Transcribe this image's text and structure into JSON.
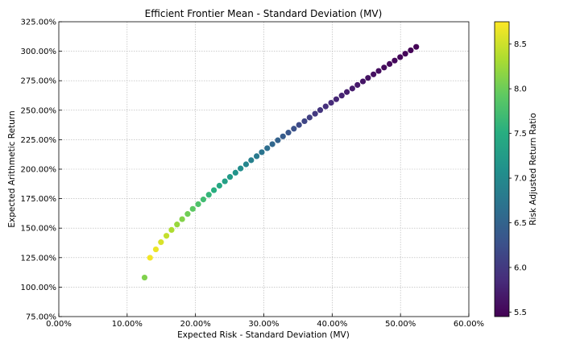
{
  "chart_data": {
    "type": "scatter",
    "title": "Efficient Frontier Mean - Standard Deviation (MV)",
    "xlabel": "Expected Risk - Standard Deviation (MV)",
    "ylabel": "Expected Arithmetic Return",
    "xlim": [
      0,
      0.6
    ],
    "ylim": [
      0.75,
      3.25
    ],
    "x_ticks": [
      0,
      0.1,
      0.2,
      0.3,
      0.4,
      0.5,
      0.6
    ],
    "x_tick_labels": [
      "0.00%",
      "10.00%",
      "20.00%",
      "30.00%",
      "40.00%",
      "50.00%",
      "60.00%"
    ],
    "y_ticks": [
      0.75,
      1.0,
      1.25,
      1.5,
      1.75,
      2.0,
      2.25,
      2.5,
      2.75,
      3.0,
      3.25
    ],
    "y_tick_labels": [
      "75.00%",
      "100.00%",
      "125.00%",
      "150.00%",
      "175.00%",
      "200.00%",
      "225.00%",
      "250.00%",
      "275.00%",
      "300.00%",
      "325.00%"
    ],
    "grid": true,
    "colormap": "viridis",
    "colorbar": {
      "label": "Risk Adjusted Return Ratio",
      "range": [
        5.45,
        8.75
      ],
      "ticks": [
        5.5,
        6.0,
        6.5,
        7.0,
        7.5,
        8.0,
        8.5
      ],
      "tick_labels": [
        "5.5",
        "6.0",
        "6.5",
        "7.0",
        "7.5",
        "8.0",
        "8.5"
      ]
    },
    "points": [
      {
        "x": 0.1255,
        "y": 1.081,
        "c": 8.1
      },
      {
        "x": 0.1335,
        "y": 1.249,
        "c": 8.7
      },
      {
        "x": 0.142,
        "y": 1.32,
        "c": 8.66
      },
      {
        "x": 0.1495,
        "y": 1.381,
        "c": 8.56
      },
      {
        "x": 0.1575,
        "y": 1.435,
        "c": 8.45
      },
      {
        "x": 0.165,
        "y": 1.485,
        "c": 8.34
      },
      {
        "x": 0.173,
        "y": 1.531,
        "c": 8.23
      },
      {
        "x": 0.1805,
        "y": 1.576,
        "c": 8.12
      },
      {
        "x": 0.1885,
        "y": 1.62,
        "c": 8.02
      },
      {
        "x": 0.196,
        "y": 1.663,
        "c": 7.91
      },
      {
        "x": 0.204,
        "y": 1.703,
        "c": 7.81
      },
      {
        "x": 0.2115,
        "y": 1.743,
        "c": 7.71
      },
      {
        "x": 0.2195,
        "y": 1.783,
        "c": 7.61
      },
      {
        "x": 0.227,
        "y": 1.822,
        "c": 7.51
      },
      {
        "x": 0.235,
        "y": 1.86,
        "c": 7.42
      },
      {
        "x": 0.243,
        "y": 1.897,
        "c": 7.32
      },
      {
        "x": 0.2505,
        "y": 1.934,
        "c": 7.23
      },
      {
        "x": 0.2585,
        "y": 1.97,
        "c": 7.14
      },
      {
        "x": 0.266,
        "y": 2.006,
        "c": 7.05
      },
      {
        "x": 0.274,
        "y": 2.041,
        "c": 6.96
      },
      {
        "x": 0.2815,
        "y": 2.076,
        "c": 6.88
      },
      {
        "x": 0.2895,
        "y": 2.11,
        "c": 6.79
      },
      {
        "x": 0.297,
        "y": 2.144,
        "c": 6.71
      },
      {
        "x": 0.305,
        "y": 2.178,
        "c": 6.63
      },
      {
        "x": 0.3125,
        "y": 2.212,
        "c": 6.55
      },
      {
        "x": 0.3205,
        "y": 2.245,
        "c": 6.48
      },
      {
        "x": 0.328,
        "y": 2.278,
        "c": 6.41
      },
      {
        "x": 0.336,
        "y": 2.31,
        "c": 6.33
      },
      {
        "x": 0.344,
        "y": 2.343,
        "c": 6.26
      },
      {
        "x": 0.3515,
        "y": 2.375,
        "c": 6.19
      },
      {
        "x": 0.3595,
        "y": 2.407,
        "c": 6.13
      },
      {
        "x": 0.367,
        "y": 2.438,
        "c": 6.06
      },
      {
        "x": 0.375,
        "y": 2.47,
        "c": 6.0
      },
      {
        "x": 0.3825,
        "y": 2.501,
        "c": 5.95
      },
      {
        "x": 0.3905,
        "y": 2.532,
        "c": 5.9
      },
      {
        "x": 0.3985,
        "y": 2.563,
        "c": 5.85
      },
      {
        "x": 0.406,
        "y": 2.593,
        "c": 5.81
      },
      {
        "x": 0.414,
        "y": 2.624,
        "c": 5.77
      },
      {
        "x": 0.4215,
        "y": 2.654,
        "c": 5.73
      },
      {
        "x": 0.4295,
        "y": 2.684,
        "c": 5.7
      },
      {
        "x": 0.437,
        "y": 2.714,
        "c": 5.67
      },
      {
        "x": 0.445,
        "y": 2.744,
        "c": 5.64
      },
      {
        "x": 0.4525,
        "y": 2.774,
        "c": 5.61
      },
      {
        "x": 0.4605,
        "y": 2.804,
        "c": 5.59
      },
      {
        "x": 0.468,
        "y": 2.833,
        "c": 5.57
      },
      {
        "x": 0.476,
        "y": 2.862,
        "c": 5.55
      },
      {
        "x": 0.484,
        "y": 2.892,
        "c": 5.53
      },
      {
        "x": 0.4915,
        "y": 2.921,
        "c": 5.52
      },
      {
        "x": 0.4995,
        "y": 2.95,
        "c": 5.5
      },
      {
        "x": 0.507,
        "y": 2.979,
        "c": 5.49
      },
      {
        "x": 0.515,
        "y": 3.008,
        "c": 5.48
      },
      {
        "x": 0.523,
        "y": 3.037,
        "c": 5.47
      }
    ]
  }
}
